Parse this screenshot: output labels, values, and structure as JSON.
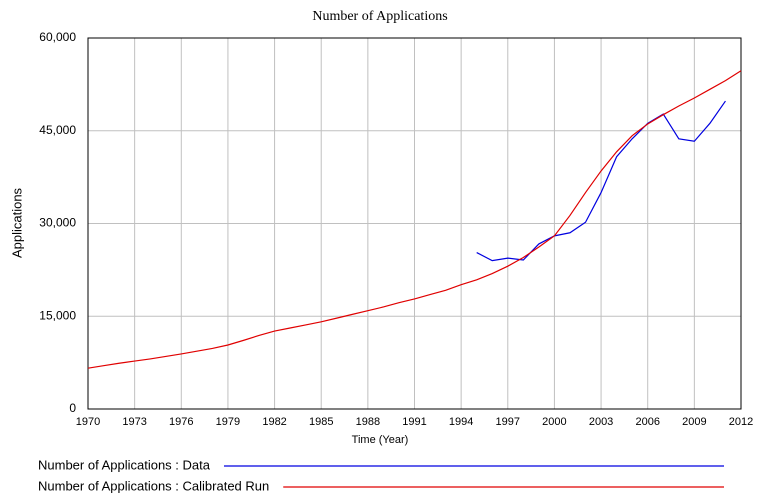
{
  "chart_data": {
    "type": "line",
    "title": "Number of Applications",
    "x_label": "Time (Year)",
    "y_label": "Applications",
    "x": [
      1970,
      1971,
      1972,
      1973,
      1974,
      1975,
      1976,
      1977,
      1978,
      1979,
      1980,
      1981,
      1982,
      1983,
      1984,
      1985,
      1986,
      1987,
      1988,
      1989,
      1990,
      1991,
      1992,
      1993,
      1994,
      1995,
      1996,
      1997,
      1998,
      1999,
      2000,
      2001,
      2002,
      2003,
      2004,
      2005,
      2006,
      2007,
      2008,
      2009,
      2010,
      2011,
      2012
    ],
    "series": [
      {
        "name": "Number of Applications : Data",
        "color": "#0000e0",
        "values": [
          null,
          null,
          null,
          null,
          null,
          null,
          null,
          null,
          null,
          null,
          null,
          null,
          null,
          null,
          null,
          null,
          null,
          null,
          null,
          null,
          null,
          null,
          null,
          null,
          null,
          25300,
          24000,
          24400,
          24100,
          26700,
          28000,
          28500,
          30200,
          35000,
          40800,
          43700,
          46200,
          47700,
          43700,
          43300,
          46200,
          49800,
          null
        ]
      },
      {
        "name": "Number of Applications : Calibrated Run",
        "color": "#e00000",
        "values": [
          6600,
          7000,
          7400,
          7750,
          8100,
          8500,
          8900,
          9350,
          9800,
          10350,
          11100,
          11900,
          12600,
          13100,
          13600,
          14100,
          14700,
          15300,
          15900,
          16500,
          17200,
          17800,
          18500,
          19200,
          20100,
          20900,
          21900,
          23100,
          24500,
          26200,
          28000,
          31300,
          35000,
          38500,
          41600,
          44200,
          46100,
          47600,
          49000,
          50300,
          51700,
          53100,
          54700
        ]
      }
    ],
    "xlim": [
      1970,
      2012
    ],
    "xticks": [
      1970,
      1973,
      1976,
      1979,
      1982,
      1985,
      1988,
      1991,
      1994,
      1997,
      2000,
      2003,
      2006,
      2009,
      2012
    ],
    "ylim": [
      0,
      60000
    ],
    "yticks": [
      0,
      {
        "value": 15000,
        "label": "15,000"
      },
      {
        "value": 30000,
        "label": "30,000"
      },
      {
        "value": 45000,
        "label": "45,000"
      },
      {
        "value": 60000,
        "label": "60,000"
      }
    ],
    "grid": true,
    "legend": "bottom"
  }
}
